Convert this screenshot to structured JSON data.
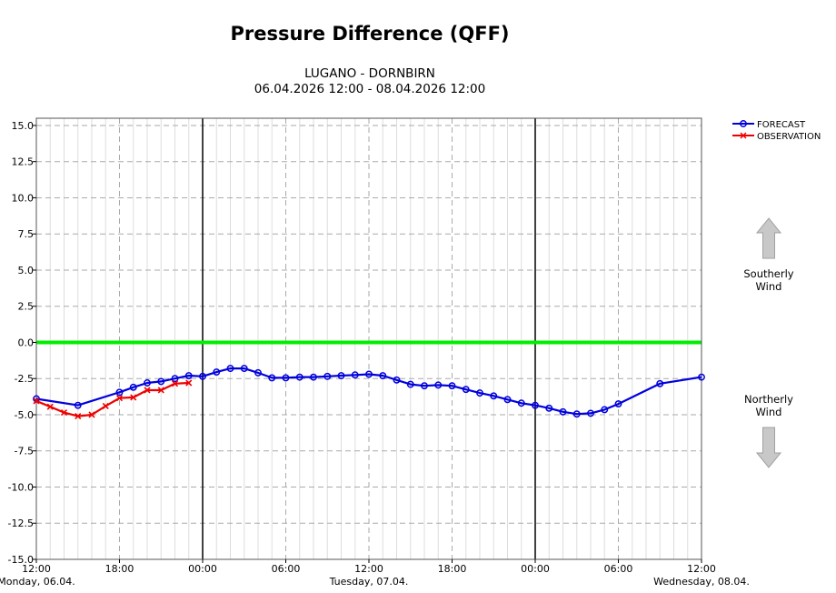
{
  "chart_data": {
    "type": "line",
    "title": "Pressure Difference (QFF)",
    "subtitle_line1": "LUGANO - DORNBIRN",
    "subtitle_line2": "06.04.2026 12:00 - 08.04.2026 12:00",
    "xlabel": "",
    "ylabel": "",
    "xlim": [
      0,
      48
    ],
    "ylim": [
      -15,
      15.5
    ],
    "yticks": [
      15.0,
      12.5,
      10.0,
      7.5,
      5.0,
      2.5,
      0.0,
      -2.5,
      -5.0,
      -7.5,
      -10.0,
      -12.5,
      -15.0
    ],
    "ytick_labels": [
      "15.0",
      "12.5",
      "10.0",
      "7.5",
      "5.0",
      "2.5",
      "0.0",
      "-2.5",
      "-5.0",
      "-7.5",
      "-10.0",
      "-12.5",
      "-15.0"
    ],
    "xticks": [
      0,
      6,
      12,
      18,
      24,
      30,
      36,
      42,
      48
    ],
    "xtick_labels": [
      "12:00",
      "18:00",
      "00:00",
      "06:00",
      "12:00",
      "18:00",
      "00:00",
      "06:00",
      "12:00"
    ],
    "day_labels": [
      {
        "x": 0,
        "label": "Monday, 06.04."
      },
      {
        "x": 24,
        "label": "Tuesday, 07.04."
      },
      {
        "x": 48,
        "label": "Wednesday, 08.04."
      }
    ],
    "day_separators": [
      12,
      36
    ],
    "reference_line": {
      "y": 0,
      "color": "#00ee00"
    },
    "grid": true,
    "legend_position": "top-right",
    "series": [
      {
        "name": "FORECAST",
        "color": "#0000dd",
        "marker": "circle",
        "x": [
          0,
          3,
          6,
          7,
          8,
          9,
          10,
          11,
          12,
          13,
          14,
          15,
          16,
          17,
          18,
          19,
          20,
          21,
          22,
          23,
          24,
          25,
          26,
          27,
          28,
          29,
          30,
          31,
          32,
          33,
          34,
          35,
          36,
          37,
          38,
          39,
          40,
          41,
          42,
          45,
          48
        ],
        "values": [
          -3.9,
          -4.35,
          -3.45,
          -3.1,
          -2.8,
          -2.7,
          -2.5,
          -2.3,
          -2.35,
          -2.05,
          -1.8,
          -1.8,
          -2.1,
          -2.45,
          -2.45,
          -2.4,
          -2.4,
          -2.35,
          -2.3,
          -2.25,
          -2.2,
          -2.3,
          -2.6,
          -2.9,
          -3.0,
          -2.95,
          -3.0,
          -3.25,
          -3.5,
          -3.7,
          -3.95,
          -4.2,
          -4.35,
          -4.55,
          -4.8,
          -4.95,
          -4.9,
          -4.65,
          -4.25,
          -2.85,
          -2.4
        ]
      },
      {
        "name": "OBSERVATION",
        "color": "#ee0000",
        "marker": "x",
        "x": [
          0,
          1,
          2,
          3,
          4,
          5,
          6,
          7,
          8,
          9,
          10,
          11
        ],
        "values": [
          -4.05,
          -4.45,
          -4.85,
          -5.1,
          -5.0,
          -4.4,
          -3.85,
          -3.8,
          -3.3,
          -3.3,
          -2.85,
          -2.8
        ]
      }
    ]
  },
  "side_labels": {
    "southerly": [
      "Southerly",
      "Wind"
    ],
    "northerly": [
      "Northerly",
      "Wind"
    ]
  },
  "colors": {
    "arrow_fill": "#c8c8c8",
    "arrow_stroke": "#a0a0a0",
    "grid": "#aaaaaa",
    "grid_minor": "#dddddd"
  }
}
